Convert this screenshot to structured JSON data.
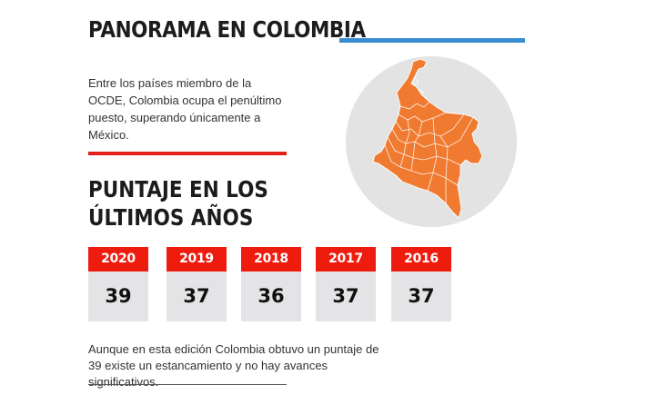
{
  "title": "PANORAMA EN COLOMBIA",
  "intro": "Entre los países miembro de la OCDE, Colombia ocupa el penúltimo puesto, superando únicamente a México.",
  "subtitle_line1": "PUNTAJE EN LOS",
  "subtitle_line2": "ÚLTIMOS AÑOS",
  "scores": [
    {
      "year": "2020",
      "score": "39"
    },
    {
      "year": "2019",
      "score": "37"
    },
    {
      "year": "2018",
      "score": "36"
    },
    {
      "year": "2017",
      "score": "37"
    },
    {
      "year": "2016",
      "score": "37"
    }
  ],
  "footer": "Aunque en esta edición Colombia obtuvo un puntaje de 39 existe un estancamiento y no hay avances significativos.",
  "colors": {
    "accent_red": "#ed1c0e",
    "accent_blue": "#3a8dd0",
    "map_orange": "#f07a30",
    "card_gray": "#e4e4e6"
  },
  "map_icon": "colombia-map-icon"
}
